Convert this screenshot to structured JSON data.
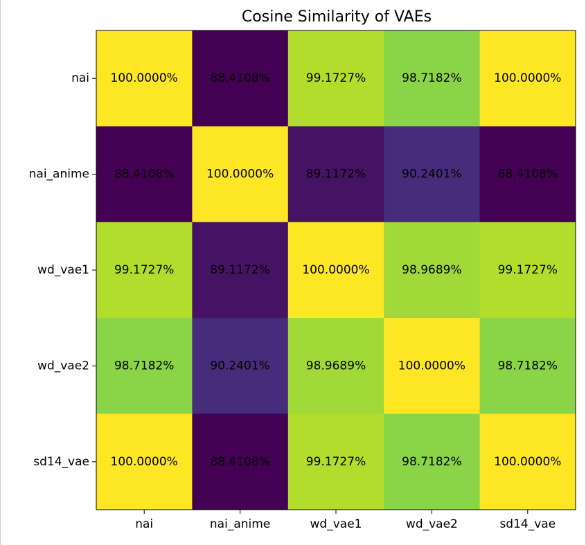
{
  "chart_data": {
    "type": "heatmap",
    "title": "Cosine Similarity of VAEs",
    "row_labels": [
      "nai",
      "nai_anime",
      "wd_vae1",
      "wd_vae2",
      "sd14_vae"
    ],
    "col_labels": [
      "nai",
      "nai_anime",
      "wd_vae1",
      "wd_vae2",
      "sd14_vae"
    ],
    "values": [
      [
        100.0,
        88.4108,
        99.1727,
        98.7182,
        100.0
      ],
      [
        88.4108,
        100.0,
        89.1172,
        90.2401,
        88.4108
      ],
      [
        99.1727,
        89.1172,
        100.0,
        98.9689,
        99.1727
      ],
      [
        98.7182,
        90.2401,
        98.9689,
        100.0,
        98.7182
      ],
      [
        100.0,
        88.4108,
        99.1727,
        98.7182,
        100.0
      ]
    ],
    "cell_labels": [
      [
        "100.0000%",
        "88.4108%",
        "99.1727%",
        "98.7182%",
        "100.0000%"
      ],
      [
        "88.4108%",
        "100.0000%",
        "89.1172%",
        "90.2401%",
        "88.4108%"
      ],
      [
        "99.1727%",
        "89.1172%",
        "100.0000%",
        "98.9689%",
        "99.1727%"
      ],
      [
        "98.7182%",
        "90.2401%",
        "98.9689%",
        "100.0000%",
        "98.7182%"
      ],
      [
        "100.0000%",
        "88.4108%",
        "99.1727%",
        "98.7182%",
        "100.0000%"
      ]
    ],
    "colormap": "viridis",
    "vmin": 88.4108,
    "vmax": 100.0,
    "grid": false,
    "colorbar": false
  }
}
